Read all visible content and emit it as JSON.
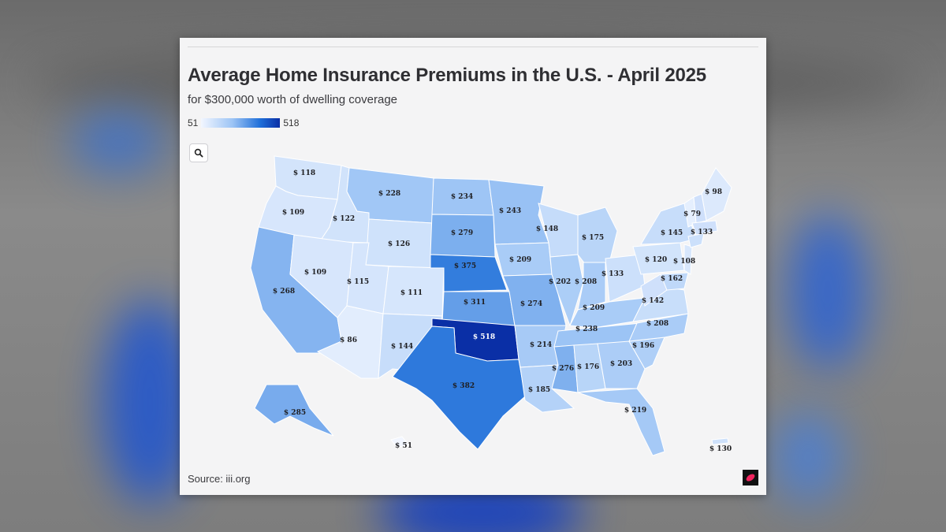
{
  "title": "Average Home Insurance Premiums in the U.S. - April 2025",
  "subtitle": "for $300,000 worth of dwelling coverage",
  "legend": {
    "min": "51",
    "max": "518"
  },
  "source": "Source: iii.org",
  "icons": {
    "zoom": "search-icon",
    "logo": "brand-logo"
  },
  "colors": {
    "low": "#f2f6ff",
    "high": "#0a2fa6"
  },
  "chart_data": {
    "type": "choropleth",
    "title": "Average Home Insurance Premiums in the U.S. - April 2025",
    "subtitle": "for $300,000 worth of dwelling coverage",
    "range": [
      51,
      518
    ],
    "states": [
      {
        "name": "WA",
        "label": "$ 118",
        "value": 118
      },
      {
        "name": "OR",
        "label": "$ 109",
        "value": 109
      },
      {
        "name": "CA",
        "label": "$ 268",
        "value": 268
      },
      {
        "name": "ID",
        "label": "$ 122",
        "value": 122
      },
      {
        "name": "NV",
        "label": "$ 109",
        "value": 109
      },
      {
        "name": "MT",
        "label": "$ 228",
        "value": 228
      },
      {
        "name": "WY",
        "label": "$ 126",
        "value": 126
      },
      {
        "name": "UT",
        "label": "$ 115",
        "value": 115
      },
      {
        "name": "AZ",
        "label": "$ 86",
        "value": 86
      },
      {
        "name": "CO",
        "label": "$ 111",
        "value": 111
      },
      {
        "name": "NM",
        "label": "$ 144",
        "value": 144
      },
      {
        "name": "ND",
        "label": "$ 234",
        "value": 234
      },
      {
        "name": "SD",
        "label": "$ 279",
        "value": 279
      },
      {
        "name": "NE",
        "label": "$ 375",
        "value": 375
      },
      {
        "name": "KS",
        "label": "$ 311",
        "value": 311
      },
      {
        "name": "OK",
        "label": "$ 518",
        "value": 518
      },
      {
        "name": "TX",
        "label": "$ 382",
        "value": 382
      },
      {
        "name": "MN",
        "label": "$ 243",
        "value": 243
      },
      {
        "name": "IA",
        "label": "$ 209",
        "value": 209
      },
      {
        "name": "MO",
        "label": "$ 274",
        "value": 274
      },
      {
        "name": "AR",
        "label": "$ 214",
        "value": 214
      },
      {
        "name": "LA",
        "label": "$ 185",
        "value": 185
      },
      {
        "name": "WI",
        "label": "$ 148",
        "value": 148
      },
      {
        "name": "IL",
        "label": "$ 202",
        "value": 202
      },
      {
        "name": "MI",
        "label": "$ 175",
        "value": 175
      },
      {
        "name": "IN",
        "label": "$ 208",
        "value": 208
      },
      {
        "name": "OH",
        "label": "$ 133",
        "value": 133
      },
      {
        "name": "KY",
        "label": "$ 209",
        "value": 209
      },
      {
        "name": "TN",
        "label": "$ 238",
        "value": 238
      },
      {
        "name": "MS",
        "label": "$ 276",
        "value": 276
      },
      {
        "name": "AL",
        "label": "$ 176",
        "value": 176
      },
      {
        "name": "GA",
        "label": "$ 203",
        "value": 203
      },
      {
        "name": "FL",
        "label": "$ 219",
        "value": 219
      },
      {
        "name": "SC",
        "label": "$ 196",
        "value": 196
      },
      {
        "name": "NC",
        "label": "$ 208",
        "value": 208
      },
      {
        "name": "VA",
        "label": "$ 142",
        "value": 142
      },
      {
        "name": "WV",
        "label": "",
        "value": null
      },
      {
        "name": "PA",
        "label": "$ 120",
        "value": 120
      },
      {
        "name": "NY",
        "label": "$ 145",
        "value": 145
      },
      {
        "name": "MD",
        "label": "$ 162",
        "value": 162
      },
      {
        "name": "NJ",
        "label": "$ 108",
        "value": 108
      },
      {
        "name": "CT",
        "label": "$ 133",
        "value": 133
      },
      {
        "name": "VT",
        "label": "$ 79",
        "value": 79
      },
      {
        "name": "ME",
        "label": "$ 98",
        "value": 98
      },
      {
        "name": "NH",
        "label": "",
        "value": null
      },
      {
        "name": "MA",
        "label": "",
        "value": null
      },
      {
        "name": "AK",
        "label": "$ 285",
        "value": 285
      },
      {
        "name": "HI",
        "label": "$ 51",
        "value": 51
      },
      {
        "name": "PR",
        "label": "$ 130",
        "value": 130
      }
    ]
  }
}
